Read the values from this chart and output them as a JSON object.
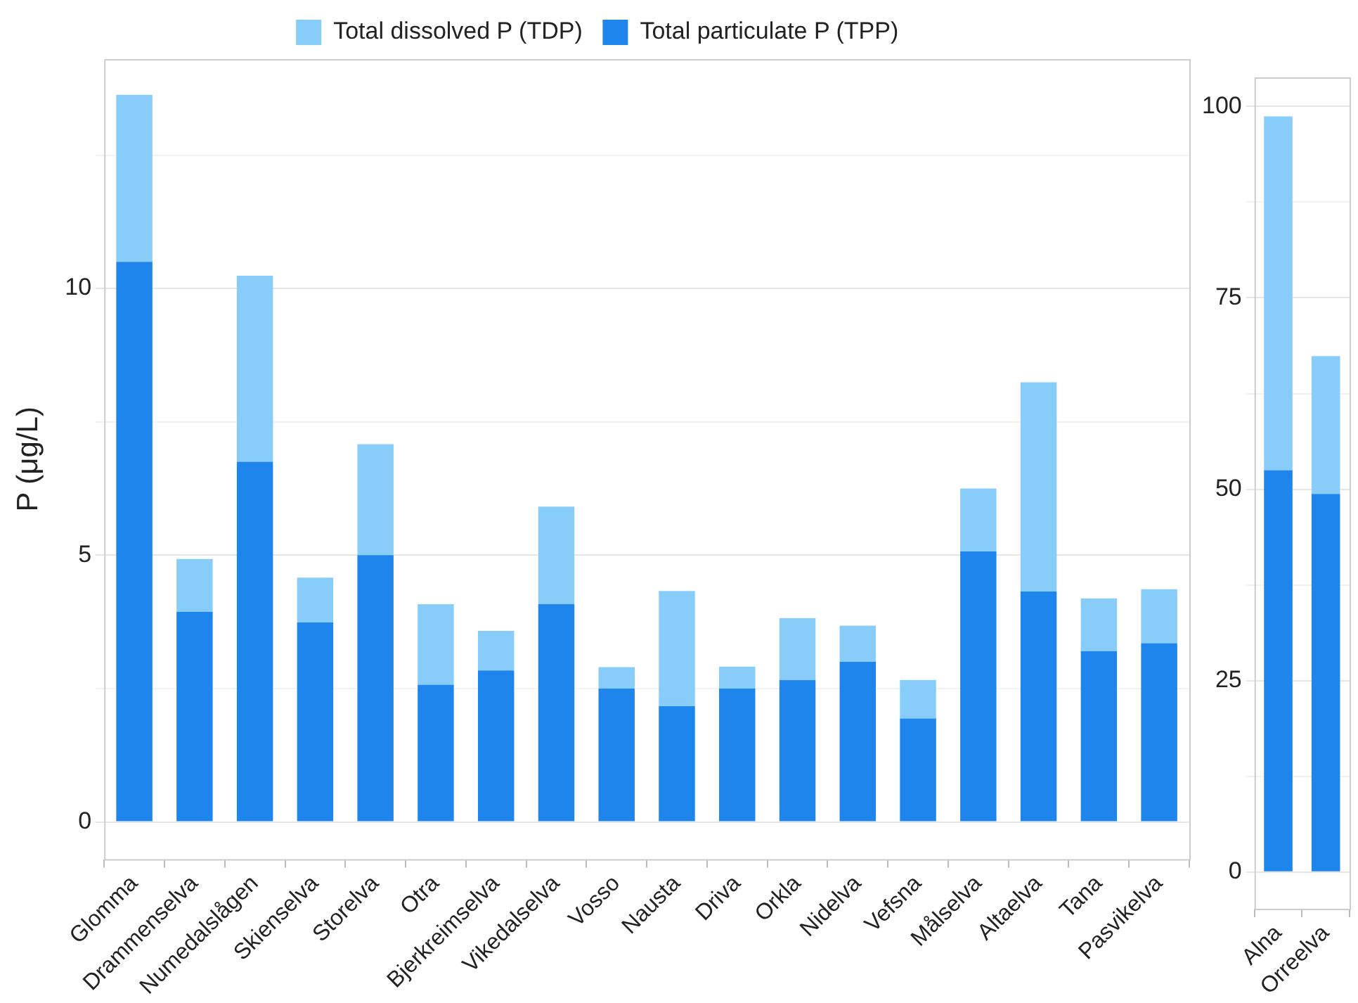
{
  "chart_data": [
    {
      "type": "bar",
      "stacked": true,
      "ylabel": "P (μg/L)",
      "legend": "top",
      "grid": "y",
      "categories": [
        "Glomma",
        "Drammenselva",
        "Numedalslågen",
        "Skienselva",
        "Storelva",
        "Otra",
        "Bjerkreimselva",
        "Vikedalselva",
        "Vosso",
        "Nausta",
        "Driva",
        "Orkla",
        "Nidelva",
        "Vefsna",
        "Målselva",
        "Altaelva",
        "Tana",
        "Pasvikelva"
      ],
      "series": [
        {
          "name": "Total particulate P (TPP)",
          "color": "#1e85ec",
          "values": [
            10.5,
            3.94,
            6.75,
            3.74,
            5.0,
            2.57,
            2.84,
            4.08,
            2.5,
            2.17,
            2.5,
            2.66,
            3.0,
            1.94,
            5.07,
            4.32,
            3.2,
            3.35
          ]
        },
        {
          "name": "Total dissolved P (TDP)",
          "color": "#88cdf9",
          "values": [
            3.13,
            0.99,
            3.49,
            0.84,
            2.08,
            1.51,
            0.74,
            1.83,
            0.4,
            2.16,
            0.41,
            1.16,
            0.68,
            0.72,
            1.18,
            3.92,
            0.99,
            1.01
          ]
        }
      ],
      "ylim": [
        -0.7,
        14.3
      ],
      "yticks": [
        0,
        {
          "value": 2.5,
          "label": null
        },
        5,
        {
          "value": 7.5,
          "label": null
        },
        10,
        {
          "value": 12.5,
          "label": null
        }
      ]
    },
    {
      "type": "bar",
      "stacked": true,
      "grid": "y",
      "categories": [
        "Alna",
        "Orreelva"
      ],
      "series": [
        {
          "color": "#1e85ec",
          "values": [
            52.5,
            49.4
          ]
        },
        {
          "color": "#88cdf9",
          "values": [
            46.2,
            18.0
          ]
        }
      ],
      "ylim": [
        -4.8,
        103.8
      ],
      "yticks": [
        0,
        {
          "value": 12.5,
          "label": null
        },
        25,
        {
          "value": 37.5,
          "label": null
        },
        50,
        {
          "value": 62.5,
          "label": null
        },
        75,
        {
          "value": 87.5,
          "label": null
        },
        100
      ]
    }
  ]
}
